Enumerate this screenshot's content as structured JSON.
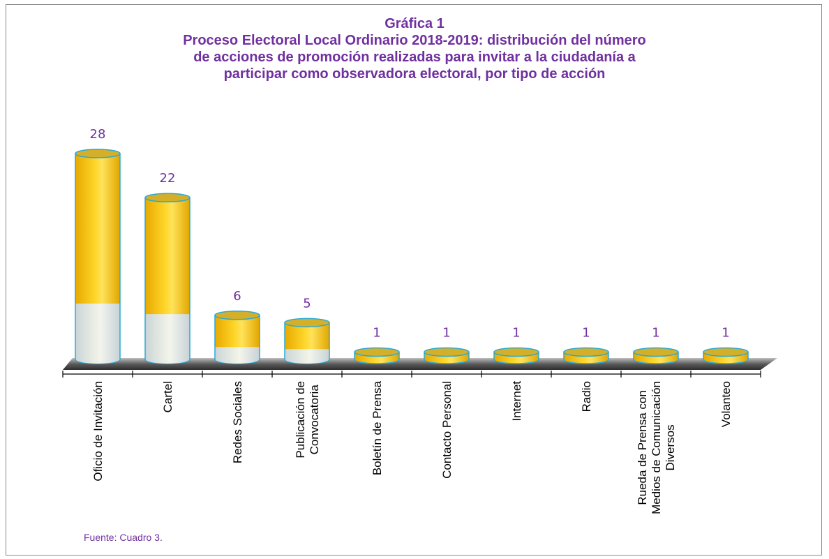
{
  "chart_data": {
    "type": "bar",
    "title": "Gráfica 1",
    "subtitle_lines": [
      "Proceso Electoral Local Ordinario 2018-2019: distribución del número",
      "de acciones de promoción realizadas para invitar a la ciudadanía a",
      "participar como observadora electoral, por tipo de acción"
    ],
    "categories": [
      [
        "Oficio de Invitación"
      ],
      [
        "Cartel"
      ],
      [
        "Redes Sociales"
      ],
      [
        "Publicación de",
        "Convocatoria"
      ],
      [
        "Boletín de Prensa"
      ],
      [
        "Contacto Personal"
      ],
      [
        "Internet"
      ],
      [
        "Radio"
      ],
      [
        "Rueda de Prensa con",
        "Medios de Comunicación",
        "Diversos"
      ],
      [
        "Volanteo"
      ]
    ],
    "values": [
      28,
      22,
      6,
      5,
      1,
      1,
      1,
      1,
      1,
      1
    ],
    "data_labels": [
      "28",
      "22",
      "6",
      "5",
      "1",
      "1",
      "1",
      "1",
      "1",
      "1"
    ],
    "xlabel": "",
    "ylabel": "",
    "ylim": [
      0,
      28
    ],
    "grid": false,
    "legend": "none",
    "colors": {
      "title": "#7030a0",
      "data_label": "#7030a0",
      "bar_top": "#ffd21e",
      "bar_dark": "#e0a800",
      "bar_base": "#dbe8f5",
      "bar_outline": "#2aa9d4",
      "axis": "#000000"
    }
  },
  "footer": {
    "source": "Fuente:  Cuadro 3."
  }
}
